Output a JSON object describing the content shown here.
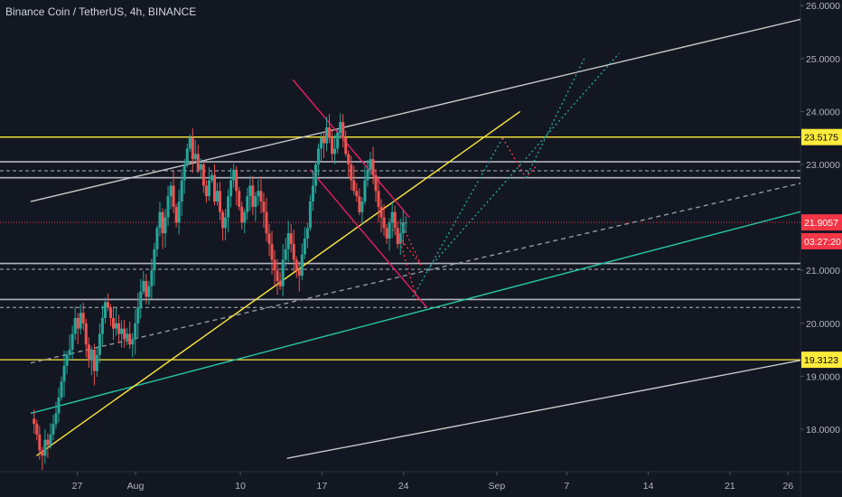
{
  "chart_data": {
    "type": "candlestick",
    "title": "Binance Coin / TetherUS, 4h, BINANCE",
    "y_ticks": [
      "26.0000",
      "25.0000",
      "24.0000",
      "23.0000",
      "21.0000",
      "20.0000",
      "19.0000",
      "18.0000"
    ],
    "y_tick_values": [
      26,
      25,
      24,
      23,
      21,
      20,
      19,
      18
    ],
    "x_ticks": [
      "27",
      "Aug",
      "10",
      "17",
      "24",
      "Sep",
      "7",
      "14",
      "21",
      "26"
    ],
    "x_tick_days": [
      -5,
      0,
      9,
      16,
      23,
      31,
      37,
      44,
      51,
      56
    ],
    "ylim": [
      17.4,
      26.1
    ],
    "xlim_days": [
      -9,
      63
    ],
    "price_labels": [
      {
        "text": "23.5175",
        "value": 23.5175,
        "color": "#ffeb3b",
        "text_color": "#000000"
      },
      {
        "text": "21.9057",
        "value": 21.9057,
        "color": "#f23645",
        "text_color": "#ffffff"
      },
      {
        "text": "03:27:20",
        "value": 21.55,
        "color": "#f23645",
        "text_color": "#ffffff"
      },
      {
        "text": "19.3123",
        "value": 19.3123,
        "color": "#ffeb3b",
        "text_color": "#000000"
      }
    ],
    "horizontal_levels": {
      "yellow": [
        23.5175,
        19.3123
      ],
      "grey_solid": [
        23.05,
        22.75,
        21.13,
        20.45
      ],
      "grey_dashed": [
        22.88,
        21.02,
        20.3
      ],
      "current_price": 21.9057
    },
    "candle_closes": [
      18.1,
      17.9,
      17.6,
      17.5,
      17.8,
      17.7,
      17.9,
      18.1,
      18.3,
      18.6,
      18.9,
      19.2,
      19.4,
      19.5,
      19.8,
      20.1,
      19.9,
      20.2,
      20.0,
      19.6,
      19.3,
      19.5,
      19.1,
      19.4,
      19.8,
      20.1,
      20.4,
      20.3,
      20.1,
      19.9,
      20.0,
      19.8,
      19.9,
      19.7,
      19.8,
      19.6,
      19.7,
      20.0,
      20.3,
      20.6,
      20.8,
      20.5,
      20.7,
      21.0,
      21.4,
      21.8,
      22.1,
      21.7,
      22.0,
      22.4,
      22.6,
      22.2,
      21.9,
      22.3,
      22.7,
      23.0,
      23.3,
      23.5,
      23.1,
      23.2,
      22.9,
      23.0,
      22.6,
      22.4,
      22.7,
      22.8,
      22.3,
      22.5,
      22.1,
      21.8,
      22.0,
      22.4,
      22.7,
      22.9,
      22.5,
      22.2,
      21.9,
      22.1,
      22.4,
      22.6,
      22.2,
      22.4,
      22.5,
      22.3,
      22.1,
      21.7,
      21.5,
      21.2,
      21.0,
      20.8,
      20.7,
      21.2,
      21.4,
      21.7,
      21.5,
      21.2,
      21.0,
      20.9,
      21.3,
      21.6,
      21.8,
      22.3,
      22.6,
      23.0,
      23.3,
      23.5,
      23.4,
      23.7,
      23.5,
      23.2,
      23.3,
      23.6,
      23.8,
      23.5,
      23.2,
      23.0,
      22.7,
      22.5,
      22.4,
      22.1,
      22.3,
      22.7,
      22.9,
      23.1,
      22.8,
      22.5,
      22.2,
      22.0,
      21.8,
      21.6,
      21.9,
      22.1,
      21.8,
      21.5,
      21.7,
      21.9,
      21.9057
    ],
    "trend_lines": [
      {
        "name": "channel-upper",
        "color": "#c8c8c8",
        "p1": [
          -9,
          22.3
        ],
        "p2": [
          63,
          26.05
        ]
      },
      {
        "name": "channel-lower",
        "color": "#c8c8c8",
        "p1": [
          13,
          17.45
        ],
        "p2": [
          63,
          19.55
        ]
      },
      {
        "name": "teal-support",
        "color": "#26c6a6",
        "p1": [
          -9,
          18.3
        ],
        "p2": [
          63,
          22.45
        ]
      },
      {
        "name": "dashed-support",
        "color": "#9598a1",
        "dashed": true,
        "p1": [
          -9,
          19.25
        ],
        "p2": [
          63,
          22.95
        ]
      },
      {
        "name": "yellow-uptrend",
        "color": "#ffeb3b",
        "p1": [
          -8.5,
          17.5
        ],
        "p2": [
          33,
          24.0
        ]
      },
      {
        "name": "red-channel-upper",
        "color": "#e91e63",
        "p1": [
          13.5,
          24.6
        ],
        "p2": [
          23.5,
          22.0
        ]
      },
      {
        "name": "red-channel-lower",
        "color": "#e91e63",
        "p1": [
          15,
          22.9
        ],
        "p2": [
          25,
          20.3
        ]
      }
    ],
    "projections": [
      {
        "name": "red-down-short",
        "color": "#f23645",
        "points": [
          [
            22.8,
            21.9
          ],
          [
            24.5,
            21.1
          ],
          [
            22.0,
            21.8
          ]
        ]
      },
      {
        "name": "red-down-long",
        "color": "#f23645",
        "points": [
          [
            22.5,
            21.7
          ],
          [
            24.2,
            20.4
          ]
        ]
      },
      {
        "name": "green-up-short",
        "color": "#26a69a",
        "points": [
          [
            23.8,
            20.5
          ],
          [
            31.5,
            23.5
          ]
        ]
      },
      {
        "name": "green-up-long",
        "color": "#26a69a",
        "points": [
          [
            25.0,
            21.0
          ],
          [
            41.5,
            25.1
          ]
        ]
      },
      {
        "name": "red-pullback",
        "color": "#f23645",
        "points": [
          [
            31.5,
            23.5
          ],
          [
            33.5,
            22.75
          ],
          [
            34.5,
            23.0
          ]
        ]
      },
      {
        "name": "green-resume",
        "color": "#26a69a",
        "points": [
          [
            33.5,
            22.75
          ],
          [
            38.5,
            25.0
          ]
        ]
      }
    ]
  }
}
